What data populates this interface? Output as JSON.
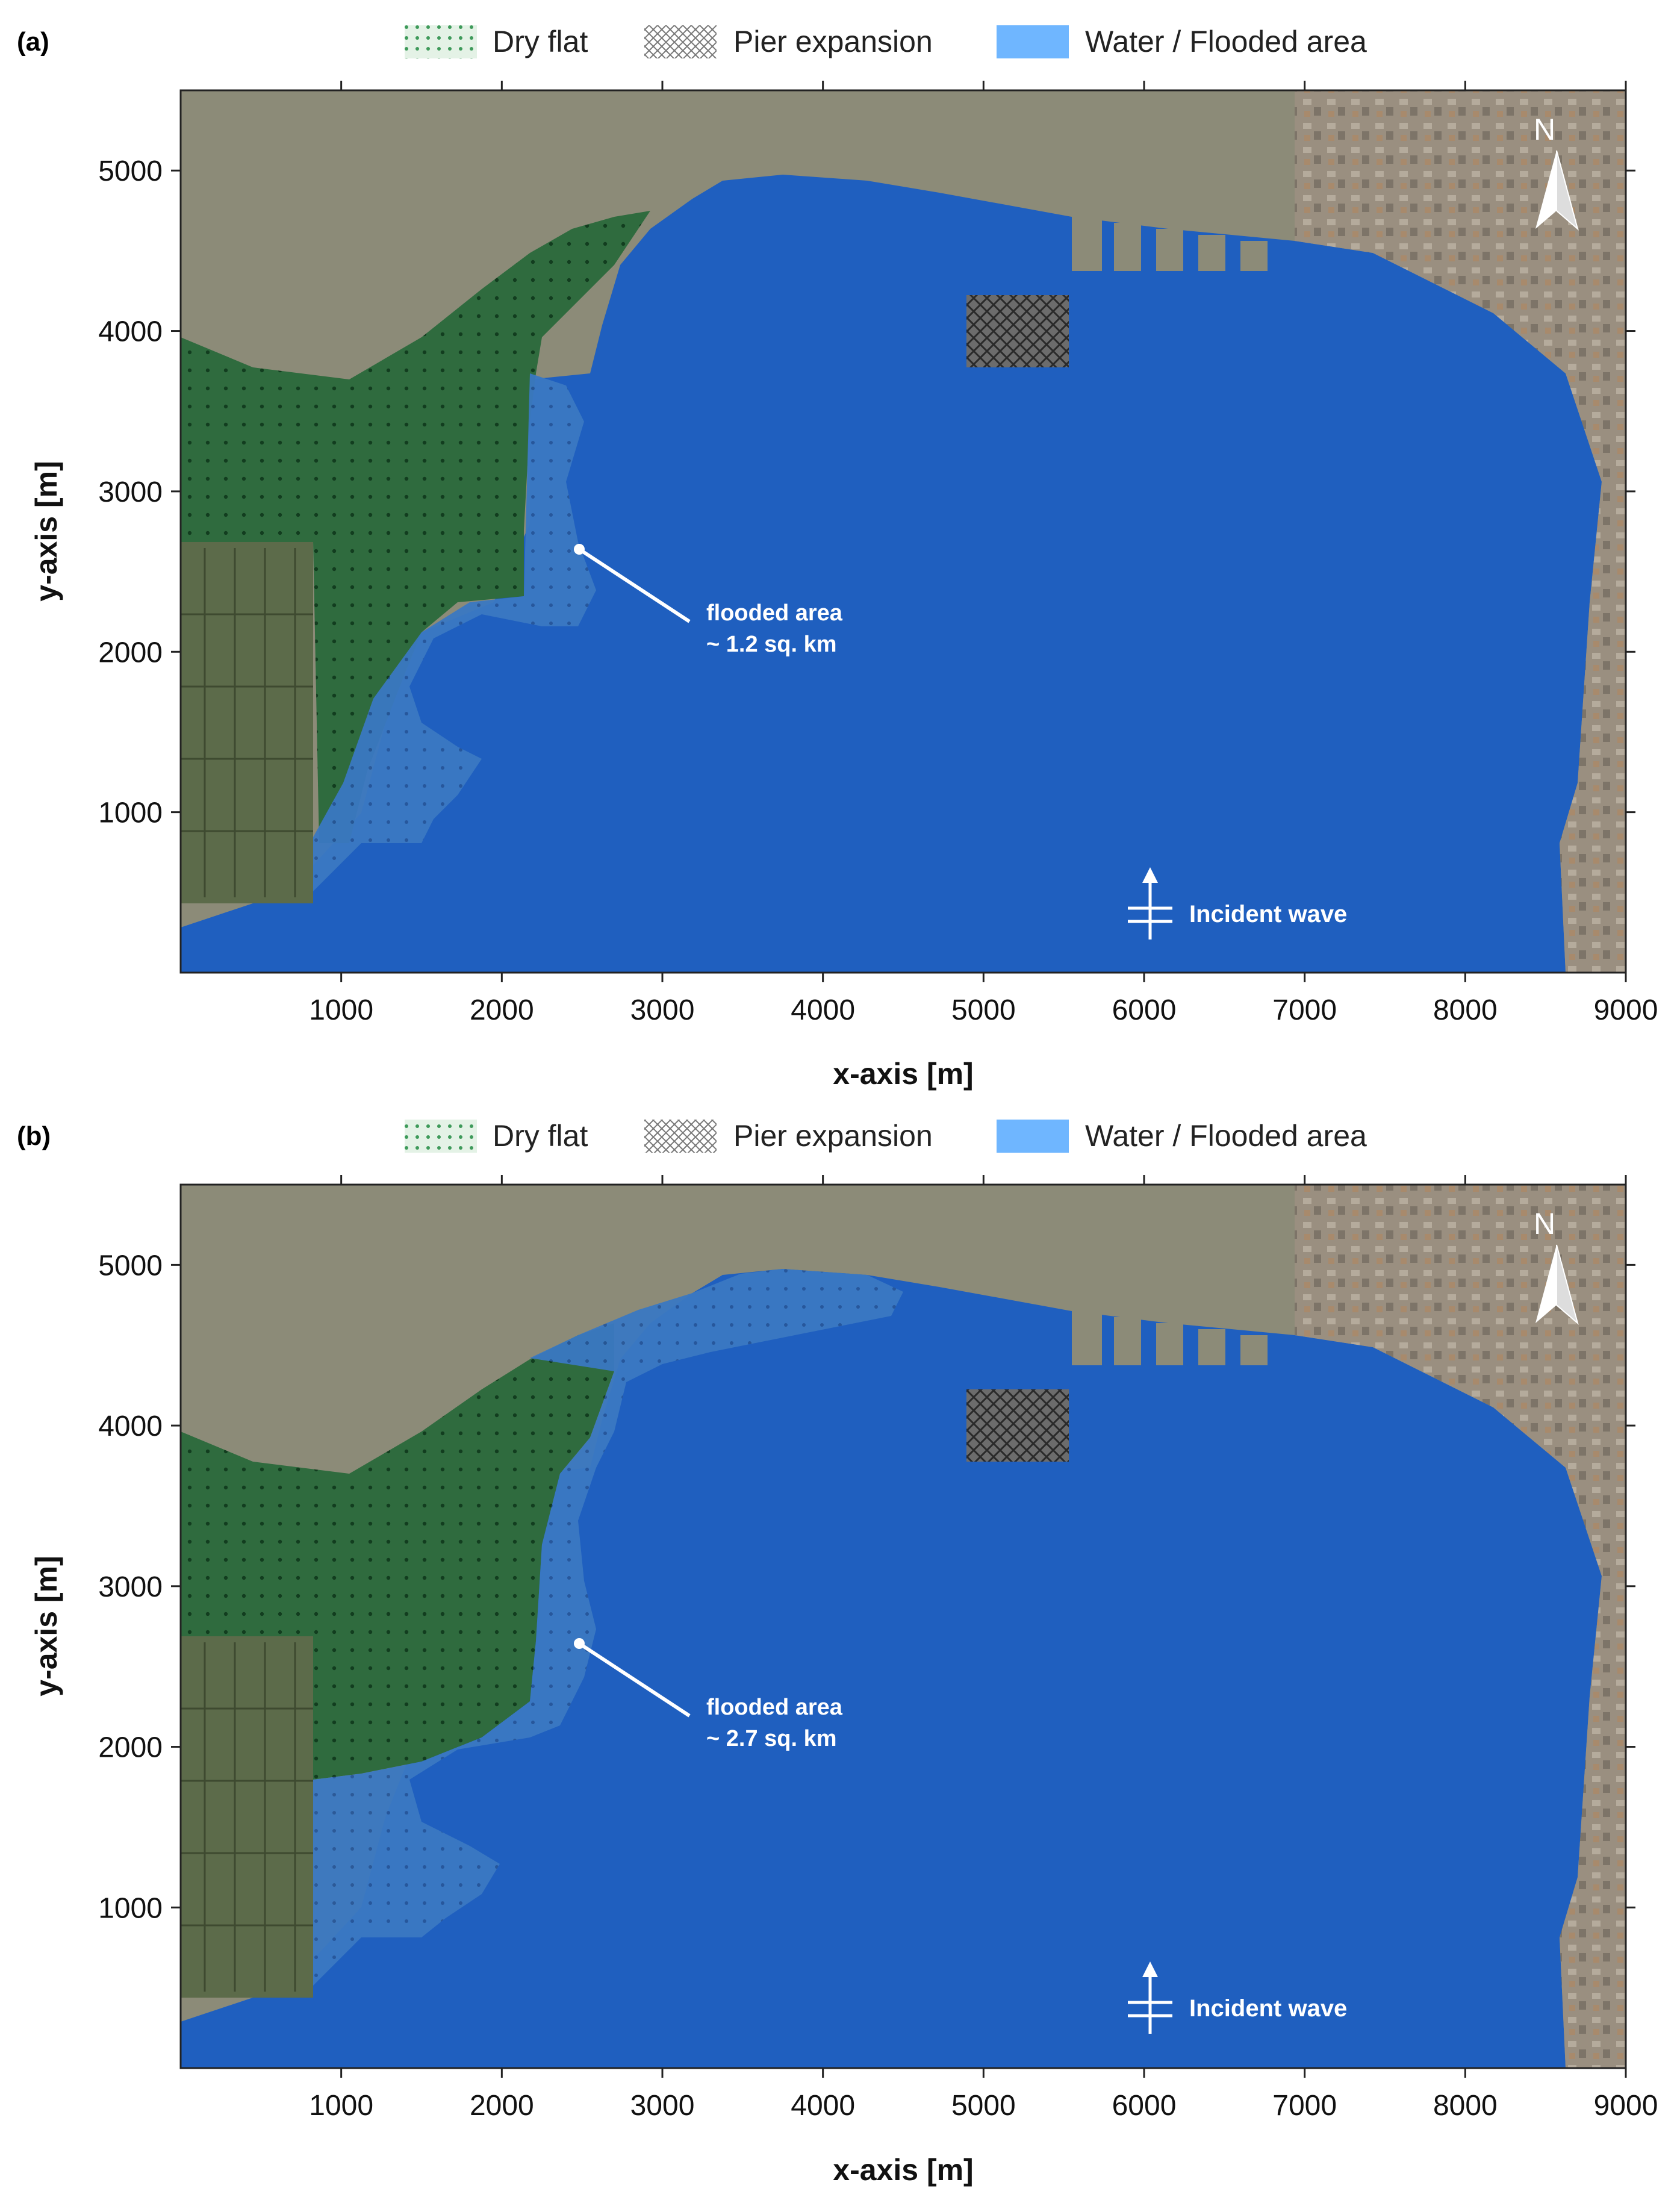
{
  "legend": {
    "dry_flat": "Dry flat",
    "pier_expansion": "Pier expansion",
    "water": "Water / Flooded area"
  },
  "colors": {
    "water": "#1f5fbf",
    "legend_water": "#6fb6ff",
    "dry_flat": "#2d6b3c",
    "land": "#8a8a7a",
    "pier_hatch": "#3a3a3a"
  },
  "icons": [
    "north-arrow-icon",
    "incident-wave-icon"
  ],
  "axes": {
    "xlabel": "x-axis  [m]",
    "ylabel": "y-axis  [m]",
    "xticks": [
      "1000",
      "2000",
      "3000",
      "4000",
      "5000",
      "6000",
      "7000",
      "8000",
      "9000"
    ],
    "yticks": [
      "1000",
      "2000",
      "3000",
      "4000",
      "5000"
    ],
    "xlim": [
      0,
      9000
    ],
    "ylim": [
      0,
      5500
    ]
  },
  "north_label": "N",
  "incident_wave": "Incident wave",
  "panels": [
    {
      "tag": "(a)",
      "annotation_line1": "flooded area",
      "annotation_line2": "~ 1.2 sq. km",
      "flooded_area_km2": 1.2
    },
    {
      "tag": "(b)",
      "annotation_line1": "flooded area",
      "annotation_line2": "~ 2.7 sq. km",
      "flooded_area_km2": 2.7
    }
  ]
}
